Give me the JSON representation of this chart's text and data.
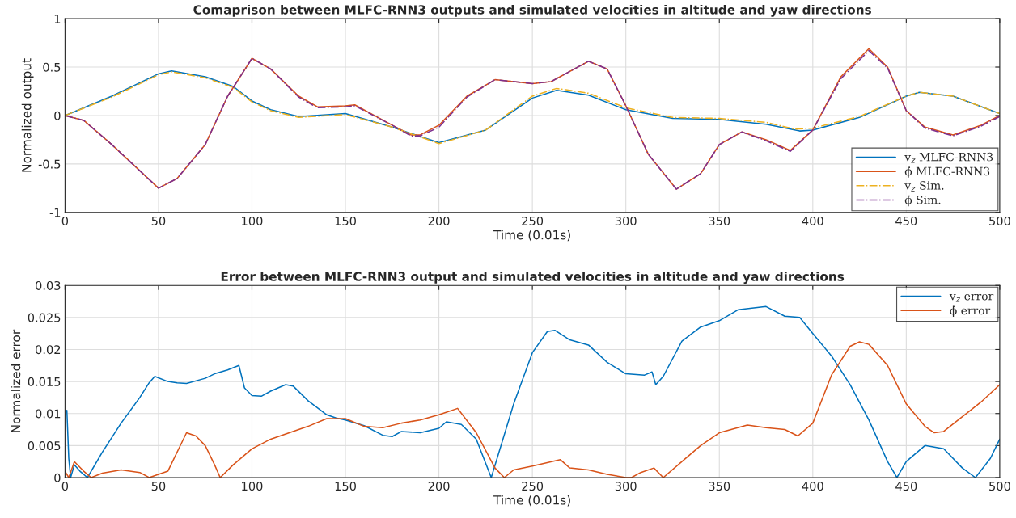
{
  "chart_data": [
    {
      "type": "line",
      "title": "Comaprison between MLFC-RNN3 outputs and simulated velocities in altitude and yaw directions",
      "xlabel": "Time (0.01s)",
      "ylabel": "Normalized output",
      "xlim": [
        0,
        500
      ],
      "ylim": [
        -1,
        1
      ],
      "xticks": [
        0,
        50,
        100,
        150,
        200,
        250,
        300,
        350,
        400,
        450,
        500
      ],
      "yticks": [
        -1,
        -0.5,
        0,
        0.5,
        1
      ],
      "grid": true,
      "legend": "bottom right",
      "series": [
        {
          "name": "v$_{z}$ MLFC-RNN3",
          "color": "#0072bd",
          "line_style": "solid",
          "x": [
            0,
            25,
            50,
            57,
            75,
            90,
            100,
            110,
            125,
            150,
            175,
            200,
            225,
            250,
            263,
            280,
            300,
            325,
            350,
            375,
            393,
            400,
            425,
            450,
            457,
            475,
            500
          ],
          "values": [
            0,
            0.2,
            0.43,
            0.46,
            0.4,
            0.3,
            0.15,
            0.06,
            -0.01,
            0.02,
            -0.12,
            -0.28,
            -0.15,
            0.18,
            0.26,
            0.21,
            0.06,
            -0.03,
            -0.04,
            -0.09,
            -0.16,
            -0.15,
            -0.02,
            0.2,
            0.24,
            0.2,
            0.02
          ]
        },
        {
          "name": "ϕ̇ MLFC-RNN3",
          "color": "#d95319",
          "line_style": "solid",
          "x": [
            0,
            10,
            25,
            50,
            60,
            75,
            87,
            100,
            110,
            125,
            135,
            150,
            155,
            175,
            185,
            190,
            200,
            215,
            230,
            250,
            260,
            280,
            290,
            300,
            312,
            327,
            340,
            350,
            362,
            375,
            388,
            400,
            415,
            430,
            440,
            450,
            460,
            475,
            490,
            500
          ],
          "values": [
            0,
            -0.05,
            -0.3,
            -0.75,
            -0.65,
            -0.3,
            0.2,
            0.59,
            0.48,
            0.2,
            0.09,
            0.1,
            0.11,
            -0.1,
            -0.2,
            -0.2,
            -0.1,
            0.2,
            0.37,
            0.33,
            0.35,
            0.56,
            0.48,
            0.1,
            -0.4,
            -0.76,
            -0.6,
            -0.3,
            -0.17,
            -0.25,
            -0.36,
            -0.15,
            0.4,
            0.69,
            0.5,
            0.05,
            -0.12,
            -0.2,
            -0.1,
            0
          ]
        },
        {
          "name": "v$_{z}$ Sim.",
          "color": "#edb120",
          "line_style": "dashdot",
          "x": [
            0,
            25,
            50,
            57,
            75,
            90,
            100,
            110,
            125,
            150,
            175,
            200,
            225,
            250,
            263,
            280,
            300,
            325,
            350,
            375,
            390,
            400,
            425,
            450,
            457,
            475,
            500
          ],
          "values": [
            0,
            0.19,
            0.42,
            0.45,
            0.39,
            0.29,
            0.14,
            0.05,
            -0.02,
            0.01,
            -0.12,
            -0.29,
            -0.15,
            0.2,
            0.28,
            0.23,
            0.08,
            -0.02,
            -0.03,
            -0.07,
            -0.14,
            -0.13,
            -0.01,
            0.2,
            0.24,
            0.2,
            0.02
          ]
        },
        {
          "name": "ϕ̇ Sim.",
          "color": "#7e2f8e",
          "line_style": "dashdot",
          "x": [
            0,
            10,
            25,
            50,
            60,
            75,
            87,
            100,
            110,
            125,
            135,
            150,
            155,
            175,
            185,
            190,
            200,
            215,
            230,
            250,
            260,
            280,
            290,
            300,
            312,
            327,
            340,
            350,
            362,
            375,
            388,
            400,
            415,
            430,
            440,
            450,
            460,
            475,
            490,
            500
          ],
          "values": [
            0,
            -0.05,
            -0.3,
            -0.75,
            -0.65,
            -0.3,
            0.2,
            0.59,
            0.48,
            0.19,
            0.08,
            0.09,
            0.1,
            -0.1,
            -0.21,
            -0.21,
            -0.12,
            0.19,
            0.37,
            0.33,
            0.35,
            0.56,
            0.48,
            0.1,
            -0.4,
            -0.76,
            -0.6,
            -0.3,
            -0.17,
            -0.26,
            -0.37,
            -0.15,
            0.38,
            0.67,
            0.49,
            0.05,
            -0.13,
            -0.21,
            -0.11,
            -0.01
          ]
        }
      ]
    },
    {
      "type": "line",
      "title": "Error between MLFC-RNN3 output and simulated velocities in altitude and yaw directions",
      "xlabel": "Time (0.01s)",
      "ylabel": "Normalized error",
      "xlim": [
        0,
        500
      ],
      "ylim": [
        0,
        0.03
      ],
      "xticks": [
        0,
        50,
        100,
        150,
        200,
        250,
        300,
        350,
        400,
        450,
        500
      ],
      "yticks": [
        0,
        0.005,
        0.01,
        0.015,
        0.02,
        0.025,
        0.03
      ],
      "grid": true,
      "legend": "top right",
      "series": [
        {
          "name": "v$_{z}$ error",
          "color": "#0072bd",
          "line_style": "solid",
          "x": [
            1,
            2,
            3,
            5,
            8,
            12,
            20,
            30,
            40,
            45,
            48,
            55,
            60,
            65,
            75,
            80,
            87,
            93,
            96,
            100,
            105,
            110,
            118,
            122,
            130,
            140,
            145,
            150,
            160,
            170,
            175,
            180,
            190,
            200,
            204,
            212,
            220,
            228,
            240,
            250,
            258,
            262,
            270,
            280,
            290,
            300,
            310,
            314,
            316,
            320,
            330,
            340,
            350,
            360,
            375,
            385,
            393,
            400,
            410,
            420,
            430,
            440,
            445,
            450,
            460,
            470,
            480,
            487,
            495,
            500
          ],
          "values": [
            0.0105,
            0.003,
            0,
            0.002,
            0.001,
            0,
            0.004,
            0.0085,
            0.0125,
            0.0148,
            0.0158,
            0.015,
            0.0148,
            0.0147,
            0.0155,
            0.0162,
            0.0168,
            0.0175,
            0.014,
            0.0128,
            0.0127,
            0.0135,
            0.0145,
            0.0143,
            0.012,
            0.0098,
            0.0093,
            0.009,
            0.0081,
            0.0066,
            0.0064,
            0.0072,
            0.007,
            0.0077,
            0.0087,
            0.0083,
            0.006,
            0,
            0.0115,
            0.0195,
            0.0228,
            0.023,
            0.0215,
            0.0207,
            0.018,
            0.0162,
            0.016,
            0.0165,
            0.0145,
            0.0158,
            0.0213,
            0.0235,
            0.0245,
            0.0262,
            0.0267,
            0.0252,
            0.025,
            0.0225,
            0.019,
            0.0145,
            0.009,
            0.0025,
            0,
            0.0025,
            0.005,
            0.0045,
            0.0015,
            0,
            0.003,
            0.006
          ]
        },
        {
          "name": "ϕ̇ error",
          "color": "#d95319",
          "line_style": "solid",
          "x": [
            0,
            2,
            5,
            10,
            14,
            20,
            30,
            40,
            45,
            50,
            55,
            65,
            70,
            75,
            80,
            83,
            90,
            100,
            110,
            120,
            130,
            140,
            150,
            160,
            170,
            180,
            190,
            200,
            210,
            220,
            230,
            235,
            240,
            250,
            265,
            270,
            280,
            290,
            300,
            303,
            308,
            315,
            320,
            330,
            340,
            350,
            365,
            375,
            385,
            392,
            400,
            410,
            420,
            425,
            430,
            440,
            450,
            460,
            465,
            470,
            480,
            490,
            500
          ],
          "values": [
            0.001,
            0,
            0.0025,
            0.001,
            0,
            0.0007,
            0.0012,
            0.0008,
            0,
            0.0005,
            0.001,
            0.007,
            0.0065,
            0.005,
            0.002,
            0,
            0.002,
            0.0045,
            0.006,
            0.007,
            0.008,
            0.0092,
            0.0092,
            0.008,
            0.0078,
            0.0085,
            0.009,
            0.0098,
            0.0108,
            0.007,
            0.0015,
            0,
            0.0012,
            0.0018,
            0.0028,
            0.0015,
            0.0012,
            0.0005,
            0,
            0,
            0.0008,
            0.0015,
            0,
            0.0025,
            0.005,
            0.007,
            0.0082,
            0.0078,
            0.0075,
            0.0065,
            0.0085,
            0.016,
            0.0205,
            0.0212,
            0.0208,
            0.0175,
            0.0115,
            0.008,
            0.007,
            0.0072,
            0.0095,
            0.0118,
            0.0145
          ]
        }
      ]
    }
  ]
}
